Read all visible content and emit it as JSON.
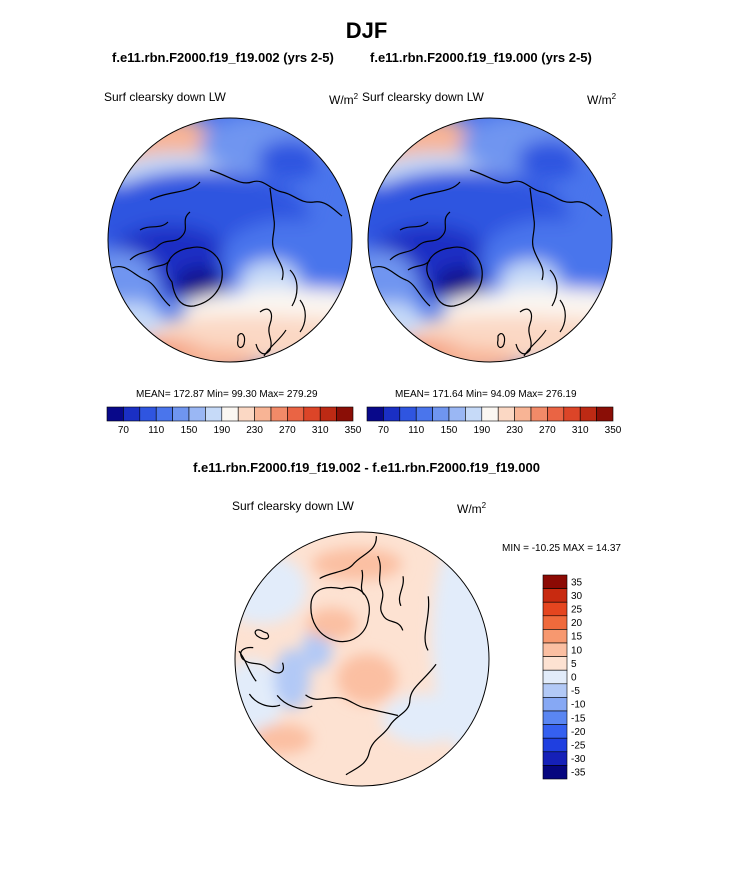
{
  "page": {
    "season_title": "DJF",
    "case1_title": "f.e11.rbn.F2000.f19_f19.002 (yrs 2-5)",
    "case2_title": "f.e11.rbn.F2000.f19_f19.000 (yrs 2-5)",
    "diff_title": "f.e11.rbn.F2000.f19_f19.002 - f.e11.rbn.F2000.f19_f19.000"
  },
  "colors": {
    "abs_palette": [
      "#08088a",
      "#1a2fc4",
      "#2f55e0",
      "#4a75ec",
      "#6f95f0",
      "#9ab7f4",
      "#c6daf8",
      "#fbf7f2",
      "#fbd8c4",
      "#f8b495",
      "#f28a68",
      "#ea6444",
      "#dc4528",
      "#bd2a14",
      "#8a0e06"
    ],
    "diff_palette": [
      "#06067f",
      "#1520b8",
      "#1f3fe0",
      "#3560f0",
      "#5a86f2",
      "#86a8f4",
      "#b2c9f6",
      "#e2ecfa",
      "#fde2d2",
      "#fbbfa2",
      "#f7986f",
      "#f06a3c",
      "#e5451f",
      "#c82a10",
      "#8c0a04"
    ]
  },
  "chart_data": [
    {
      "type": "heatmap",
      "projection": "north-polar-stereographic",
      "title": "f.e11.rbn.F2000.f19_f19.002 (yrs 2-5)",
      "variable": "Surf clearsky down LW",
      "units_base": "W/m",
      "units_exp": "2",
      "stats": {
        "mean": "172.87",
        "min": "99.30",
        "max": "279.29"
      },
      "stats_text": "MEAN= 172.87  Min=  99.30  Max= 279.29",
      "colorbar_orientation": "horizontal",
      "levels": [
        70,
        90,
        110,
        130,
        150,
        170,
        190,
        210,
        230,
        250,
        270,
        290,
        310,
        330,
        350
      ],
      "tick_labels": [
        "70",
        "110",
        "150",
        "190",
        "230",
        "270",
        "310",
        "350"
      ]
    },
    {
      "type": "heatmap",
      "projection": "north-polar-stereographic",
      "title": "f.e11.rbn.F2000.f19_f19.000 (yrs 2-5)",
      "variable": "Surf clearsky down LW",
      "units_base": "W/m",
      "units_exp": "2",
      "stats": {
        "mean": "171.64",
        "min": "94.09",
        "max": "276.19"
      },
      "stats_text": "MEAN= 171.64  Min=  94.09  Max= 276.19",
      "colorbar_orientation": "horizontal",
      "levels": [
        70,
        90,
        110,
        130,
        150,
        170,
        190,
        210,
        230,
        250,
        270,
        290,
        310,
        330,
        350
      ],
      "tick_labels": [
        "70",
        "110",
        "150",
        "190",
        "230",
        "270",
        "310",
        "350"
      ]
    },
    {
      "type": "heatmap",
      "projection": "north-polar-stereographic",
      "title": "f.e11.rbn.F2000.f19_f19.002 - f.e11.rbn.F2000.f19_f19.000",
      "variable": "Surf clearsky down LW",
      "units_base": "W/m",
      "units_exp": "2",
      "stats": {
        "min": "-10.25",
        "max": "14.37"
      },
      "stats_text": "MIN = -10.25 MAX =  14.37",
      "colorbar_orientation": "vertical",
      "levels": [
        -35,
        -30,
        -25,
        -20,
        -15,
        -10,
        -5,
        0,
        5,
        10,
        15,
        20,
        25,
        30,
        35
      ],
      "tick_labels": [
        "35",
        "30",
        "25",
        "20",
        "15",
        "10",
        "5",
        "0",
        "-5",
        "-10",
        "-15",
        "-20",
        "-25",
        "-30",
        "-35"
      ]
    }
  ]
}
